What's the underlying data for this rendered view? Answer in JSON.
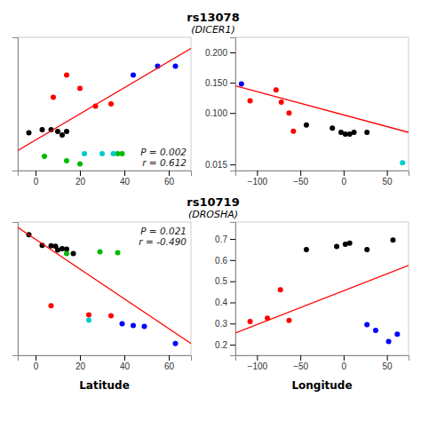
{
  "chart_data": [
    {
      "type": "scatter",
      "title": "rs13078",
      "subtitle": "(DICER1)",
      "xlim": [
        -8,
        70
      ],
      "ylim": [
        -0.02,
        0.28
      ],
      "xticks": [
        0,
        20,
        40,
        60
      ],
      "tick_labels": "x",
      "annotations": [
        "P = 0.002",
        "r = 0.612"
      ],
      "series": [
        {
          "type": "scatter",
          "x": [
            -3,
            3,
            7,
            10,
            12,
            14,
            8,
            14,
            20,
            27,
            34,
            44,
            55,
            63,
            4,
            14,
            20,
            37,
            39,
            22,
            30,
            35
          ],
          "values": [
            0.065,
            0.072,
            0.072,
            0.068,
            0.06,
            0.068,
            0.145,
            0.195,
            0.165,
            0.125,
            0.13,
            0.195,
            0.215,
            0.215,
            0.012,
            0.002,
            -0.005,
            0.018,
            0.018,
            0.018,
            0.018,
            0.018
          ],
          "colors": [
            "black",
            "black",
            "black",
            "black",
            "black",
            "black",
            "red",
            "red",
            "red",
            "red",
            "red",
            "blue",
            "blue",
            "blue",
            "#00bb00",
            "#00bb00",
            "#00bb00",
            "#00bb00",
            "#00bb00",
            "#00cccc",
            "#00cccc",
            "#00cccc"
          ]
        },
        {
          "type": "line",
          "color": "red",
          "x": [
            -8,
            70
          ],
          "values": [
            0.025,
            0.255
          ]
        }
      ]
    },
    {
      "type": "scatter",
      "xlim": [
        -125,
        75
      ],
      "ylim": [
        0.005,
        0.225
      ],
      "xticks": [
        {
          "value": -100,
          "label": "−100"
        },
        {
          "value": -50,
          "label": "−50"
        },
        0,
        50
      ],
      "yticks": [
        0.015,
        {
          "value": 0.1,
          "label": "0.100"
        },
        {
          "value": 0.15,
          "label": "0.150"
        },
        {
          "value": 0.2,
          "label": "0.200"
        }
      ],
      "series": [
        {
          "type": "scatter",
          "x": [
            -118,
            -108,
            -78,
            -72,
            -63,
            -58,
            -43,
            -13,
            -3,
            2,
            7,
            12,
            27,
            68
          ],
          "values": [
            0.148,
            0.12,
            0.138,
            0.118,
            0.1,
            0.07,
            0.08,
            0.075,
            0.068,
            0.065,
            0.065,
            0.068,
            0.068,
            0.018
          ],
          "colors": [
            "blue",
            "red",
            "red",
            "red",
            "red",
            "red",
            "black",
            "black",
            "black",
            "black",
            "black",
            "black",
            "black",
            "#00cccc"
          ]
        },
        {
          "type": "line",
          "color": "red",
          "x": [
            -125,
            75
          ],
          "values": [
            0.145,
            0.068
          ]
        }
      ]
    },
    {
      "type": "scatter",
      "title": "rs10719",
      "subtitle": "(DROSHA)",
      "xlabel": "Latitude",
      "xlim": [
        -8,
        70
      ],
      "ylim": [
        0.08,
        0.82
      ],
      "xticks": [
        0,
        20,
        40,
        60
      ],
      "tick_labels": "x",
      "annotations": [
        "P = 0.021",
        "r = -0.490"
      ],
      "series": [
        {
          "type": "scatter",
          "x": [
            -3,
            3,
            7,
            9,
            10,
            12,
            14,
            17,
            14,
            29,
            37,
            7,
            24,
            34,
            24,
            39,
            44,
            49,
            63
          ],
          "values": [
            0.75,
            0.69,
            0.688,
            0.685,
            0.665,
            0.672,
            0.67,
            0.645,
            0.645,
            0.655,
            0.65,
            0.355,
            0.305,
            0.3,
            0.275,
            0.255,
            0.245,
            0.24,
            0.145
          ],
          "colors": [
            "black",
            "black",
            "black",
            "black",
            "black",
            "black",
            "black",
            "black",
            "#00bb00",
            "#00bb00",
            "#00bb00",
            "red",
            "red",
            "red",
            "#00cccc",
            "blue",
            "blue",
            "blue",
            "blue"
          ]
        },
        {
          "type": "line",
          "color": "red",
          "x": [
            -8,
            70
          ],
          "values": [
            0.79,
            0.145
          ]
        }
      ]
    },
    {
      "type": "scatter",
      "xlabel": "Longitude",
      "xlim": [
        -125,
        75
      ],
      "ylim": [
        0.15,
        0.78
      ],
      "xticks": [
        {
          "value": -100,
          "label": "−100"
        },
        {
          "value": -50,
          "label": "−50"
        },
        0,
        50
      ],
      "yticks": [
        0.2,
        0.3,
        0.4,
        0.5,
        0.6,
        0.7
      ],
      "series": [
        {
          "type": "scatter",
          "x": [
            -108,
            -88,
            -73,
            -63,
            -43,
            -8,
            2,
            7,
            27,
            57,
            27,
            37,
            52,
            62
          ],
          "values": [
            0.31,
            0.325,
            0.46,
            0.315,
            0.65,
            0.665,
            0.675,
            0.68,
            0.65,
            0.695,
            0.295,
            0.268,
            0.215,
            0.25
          ],
          "colors": [
            "red",
            "red",
            "red",
            "red",
            "black",
            "black",
            "black",
            "black",
            "black",
            "black",
            "blue",
            "blue",
            "blue",
            "blue"
          ]
        },
        {
          "type": "line",
          "color": "red",
          "x": [
            -125,
            75
          ],
          "values": [
            0.255,
            0.575
          ]
        }
      ]
    }
  ]
}
